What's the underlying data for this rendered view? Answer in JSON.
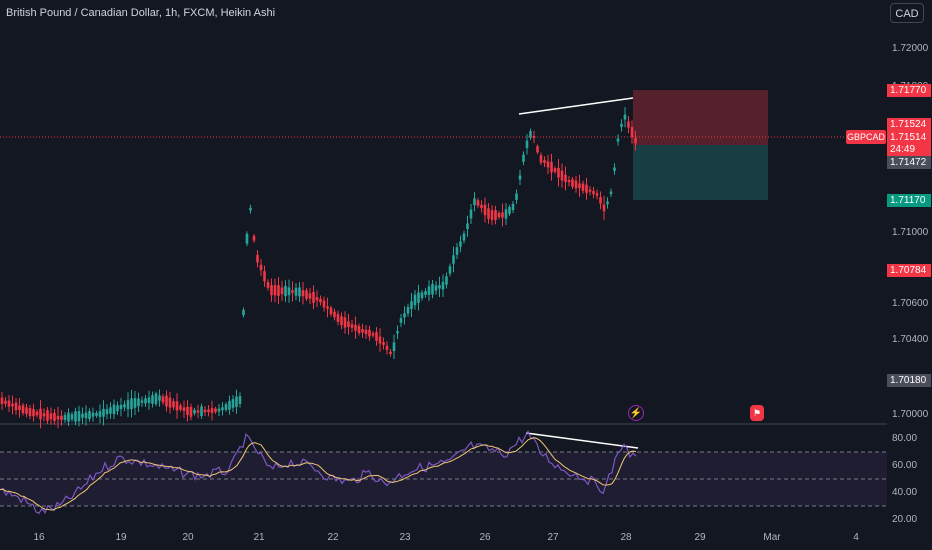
{
  "header": {
    "title": "British Pound / Canadian Dollar, 1h, FXCM, Heikin Ashi",
    "currency_button": "CAD"
  },
  "price_axis": {
    "ticks": [
      "1.72000",
      "1.71800",
      "1.71600",
      "1.71400",
      "1.71200",
      "1.71000",
      "1.70800",
      "1.70600",
      "1.70400",
      "1.70200",
      "1.70000"
    ],
    "labels": [
      {
        "text": "1.71770",
        "style": "red"
      },
      {
        "text": "1.71524",
        "style": "red"
      },
      {
        "text": "1.71514",
        "style": "red"
      },
      {
        "text": "24:49",
        "style": "red"
      },
      {
        "text": "1.71472",
        "style": "gray"
      },
      {
        "text": "1.71170",
        "style": "green"
      },
      {
        "text": "1.70784",
        "style": "red"
      },
      {
        "text": "1.70180",
        "style": "gray"
      }
    ],
    "symbol_tag": "GBPCAD"
  },
  "rsi_axis": {
    "ticks": [
      "80.00",
      "60.00",
      "40.00",
      "20.00"
    ]
  },
  "time_axis": {
    "ticks": [
      "16",
      "19",
      "20",
      "21",
      "22",
      "23",
      "26",
      "27",
      "28",
      "29",
      "Mar",
      "4"
    ]
  },
  "colors": {
    "up": "#26a69a",
    "down": "#f23645",
    "rsi_line": "#7e57c2",
    "rsi_ma": "#f0c674",
    "background": "#131722"
  },
  "icons": {
    "flash": "lightning-icon",
    "flag": "flag-icon"
  },
  "chart_data": {
    "type": "candlestick",
    "style": "Heikin Ashi",
    "symbol": "GBPCAD",
    "timeframe": "1h",
    "price_range": [
      1.6992,
      1.7232
    ],
    "rsi_range": [
      10,
      90
    ],
    "rsi_band": [
      30,
      70
    ],
    "position": {
      "entry": 1.71472,
      "stop": 1.7177,
      "target": 1.7117,
      "direction": "short"
    },
    "divergence_note": "higher high in price, lower high in RSI"
  }
}
